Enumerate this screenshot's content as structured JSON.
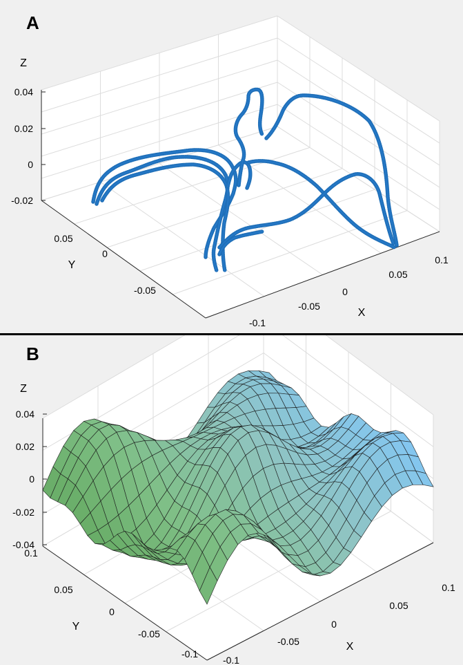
{
  "chart_data": [
    {
      "panel_label": "A",
      "type": "scatter3d",
      "xlabel": "X",
      "ylabel": "Y",
      "zlabel": "Z",
      "xticks": [
        "-0.1",
        "-0.05",
        "0",
        "0.05",
        "0.1"
      ],
      "yticks": [
        "-0.05",
        "0",
        "0.05"
      ],
      "zticks": [
        "-0.02",
        "0",
        "0.02",
        "0.04"
      ],
      "xlim": [
        -0.12,
        0.12
      ],
      "ylim": [
        -0.1,
        0.1
      ],
      "zlim": [
        -0.025,
        0.045
      ],
      "grid": true,
      "marker_color": "#1f6fb8",
      "series": [
        {
          "points": [
            [
              -0.06,
              0.03,
              -0.02
            ],
            [
              -0.05,
              0.02,
              0.0
            ],
            [
              -0.03,
              0.01,
              0.01
            ],
            [
              -0.01,
              0.0,
              0.005
            ],
            [
              0.0,
              0.0,
              0.0
            ],
            [
              0.0,
              -0.02,
              -0.02
            ]
          ]
        },
        {
          "points": [
            [
              -0.055,
              0.035,
              -0.015
            ],
            [
              -0.04,
              0.02,
              0.005
            ],
            [
              -0.02,
              0.015,
              0.012
            ],
            [
              0.0,
              0.005,
              0.008
            ],
            [
              0.01,
              0.0,
              0.0
            ]
          ]
        },
        {
          "points": [
            [
              0.0,
              0.0,
              0.0
            ],
            [
              0.02,
              0.0,
              0.03
            ],
            [
              0.03,
              0.01,
              0.04
            ],
            [
              0.03,
              0.02,
              0.02
            ]
          ]
        },
        {
          "points": [
            [
              0.035,
              0.03,
              0.02
            ],
            [
              0.06,
              0.05,
              0.04
            ],
            [
              0.08,
              0.04,
              0.03
            ],
            [
              0.09,
              0.0,
              -0.02
            ]
          ]
        },
        {
          "points": [
            [
              -0.02,
              -0.05,
              -0.02
            ],
            [
              0.0,
              -0.02,
              -0.01
            ],
            [
              0.03,
              -0.01,
              0.0
            ],
            [
              0.06,
              0.0,
              -0.01
            ],
            [
              0.09,
              0.0,
              -0.02
            ]
          ]
        }
      ]
    },
    {
      "panel_label": "B",
      "type": "surface",
      "xlabel": "X",
      "ylabel": "Y",
      "zlabel": "Z",
      "xticks": [
        "-0.1",
        "-0.05",
        "0",
        "0.05",
        "0.1"
      ],
      "yticks": [
        "-0.1",
        "-0.05",
        "0",
        "0.05",
        "0.1"
      ],
      "zticks": [
        "-0.04",
        "-0.02",
        "0",
        "0.02",
        "0.04"
      ],
      "xlim": [
        -0.1,
        0.1
      ],
      "ylim": [
        -0.1,
        0.1
      ],
      "zlim": [
        -0.04,
        0.04
      ],
      "grid": true,
      "colormap": [
        "#5fa55a",
        "#7fbf86",
        "#8fc4c0",
        "#84c6ef"
      ],
      "z_range": [
        -0.035,
        0.035
      ]
    }
  ]
}
